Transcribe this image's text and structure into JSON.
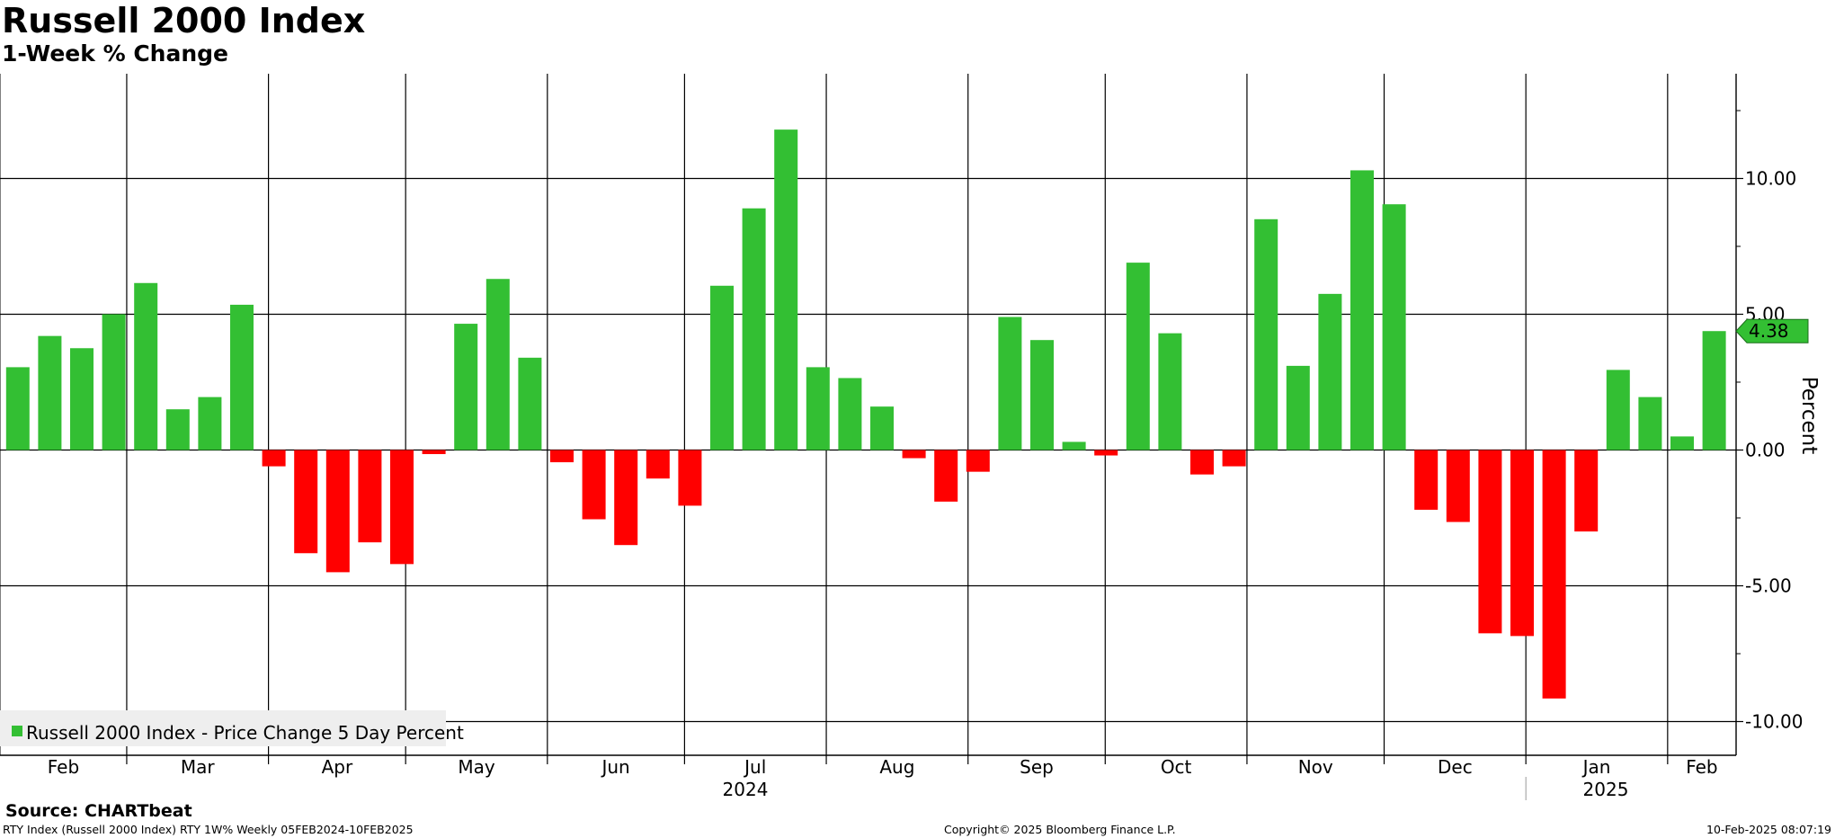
{
  "chart_data": {
    "type": "bar",
    "title": "Russell 2000 Index",
    "subtitle": "1-Week % Change",
    "ylabel": "Percent",
    "ylim": [
      -11.5,
      13.8
    ],
    "yticks": [
      -10,
      -5,
      0,
      5,
      10
    ],
    "ytick_labels": [
      "-10.00",
      "-5.00",
      "0.00",
      "5.00",
      "10.00"
    ],
    "grid": true,
    "legend": {
      "position": "bottom-left",
      "entries": [
        {
          "label": "Russell 2000 Index - Price Change 5 Day Percent",
          "color": "#33bf33"
        }
      ]
    },
    "x_frequency": "weekly",
    "x_start": "2024-02-05",
    "x_end": "2025-02-10",
    "month_labels": [
      "Feb",
      "Mar",
      "Apr",
      "May",
      "Jun",
      "Jul",
      "Aug",
      "Sep",
      "Oct",
      "Nov",
      "Dec",
      "Jan",
      "Feb"
    ],
    "year_labels": [
      "2024",
      "2025"
    ],
    "series": [
      {
        "name": "Russell 2000 Index - Price Change 5 Day Percent",
        "values": [
          3.05,
          4.2,
          3.75,
          5.0,
          6.15,
          1.5,
          1.95,
          5.35,
          -0.6,
          -3.8,
          -4.5,
          -3.4,
          -4.2,
          -0.15,
          4.65,
          6.3,
          3.4,
          -0.45,
          -2.55,
          -3.5,
          -1.05,
          -2.05,
          6.05,
          8.9,
          11.8,
          3.05,
          2.65,
          1.6,
          -0.3,
          -1.9,
          -0.8,
          4.9,
          4.05,
          0.3,
          -0.2,
          6.9,
          4.3,
          -0.9,
          -0.6,
          8.5,
          3.1,
          5.75,
          10.3,
          9.05,
          -2.2,
          -2.65,
          -6.75,
          -6.85,
          -9.15,
          -3.0,
          2.95,
          1.95,
          0.5,
          4.38
        ]
      }
    ],
    "positive_color": "#33bf33",
    "negative_color": "#ff0000",
    "last_value_label": "4.38"
  },
  "source": "Source: CHARTbeat",
  "footer": {
    "left": "RTY Index (Russell 2000 Index) RTY 1W% Weekly 05FEB2024-10FEB2025",
    "center": "Copyright© 2025 Bloomberg Finance L.P.",
    "right": "10-Feb-2025 08:07:19"
  }
}
